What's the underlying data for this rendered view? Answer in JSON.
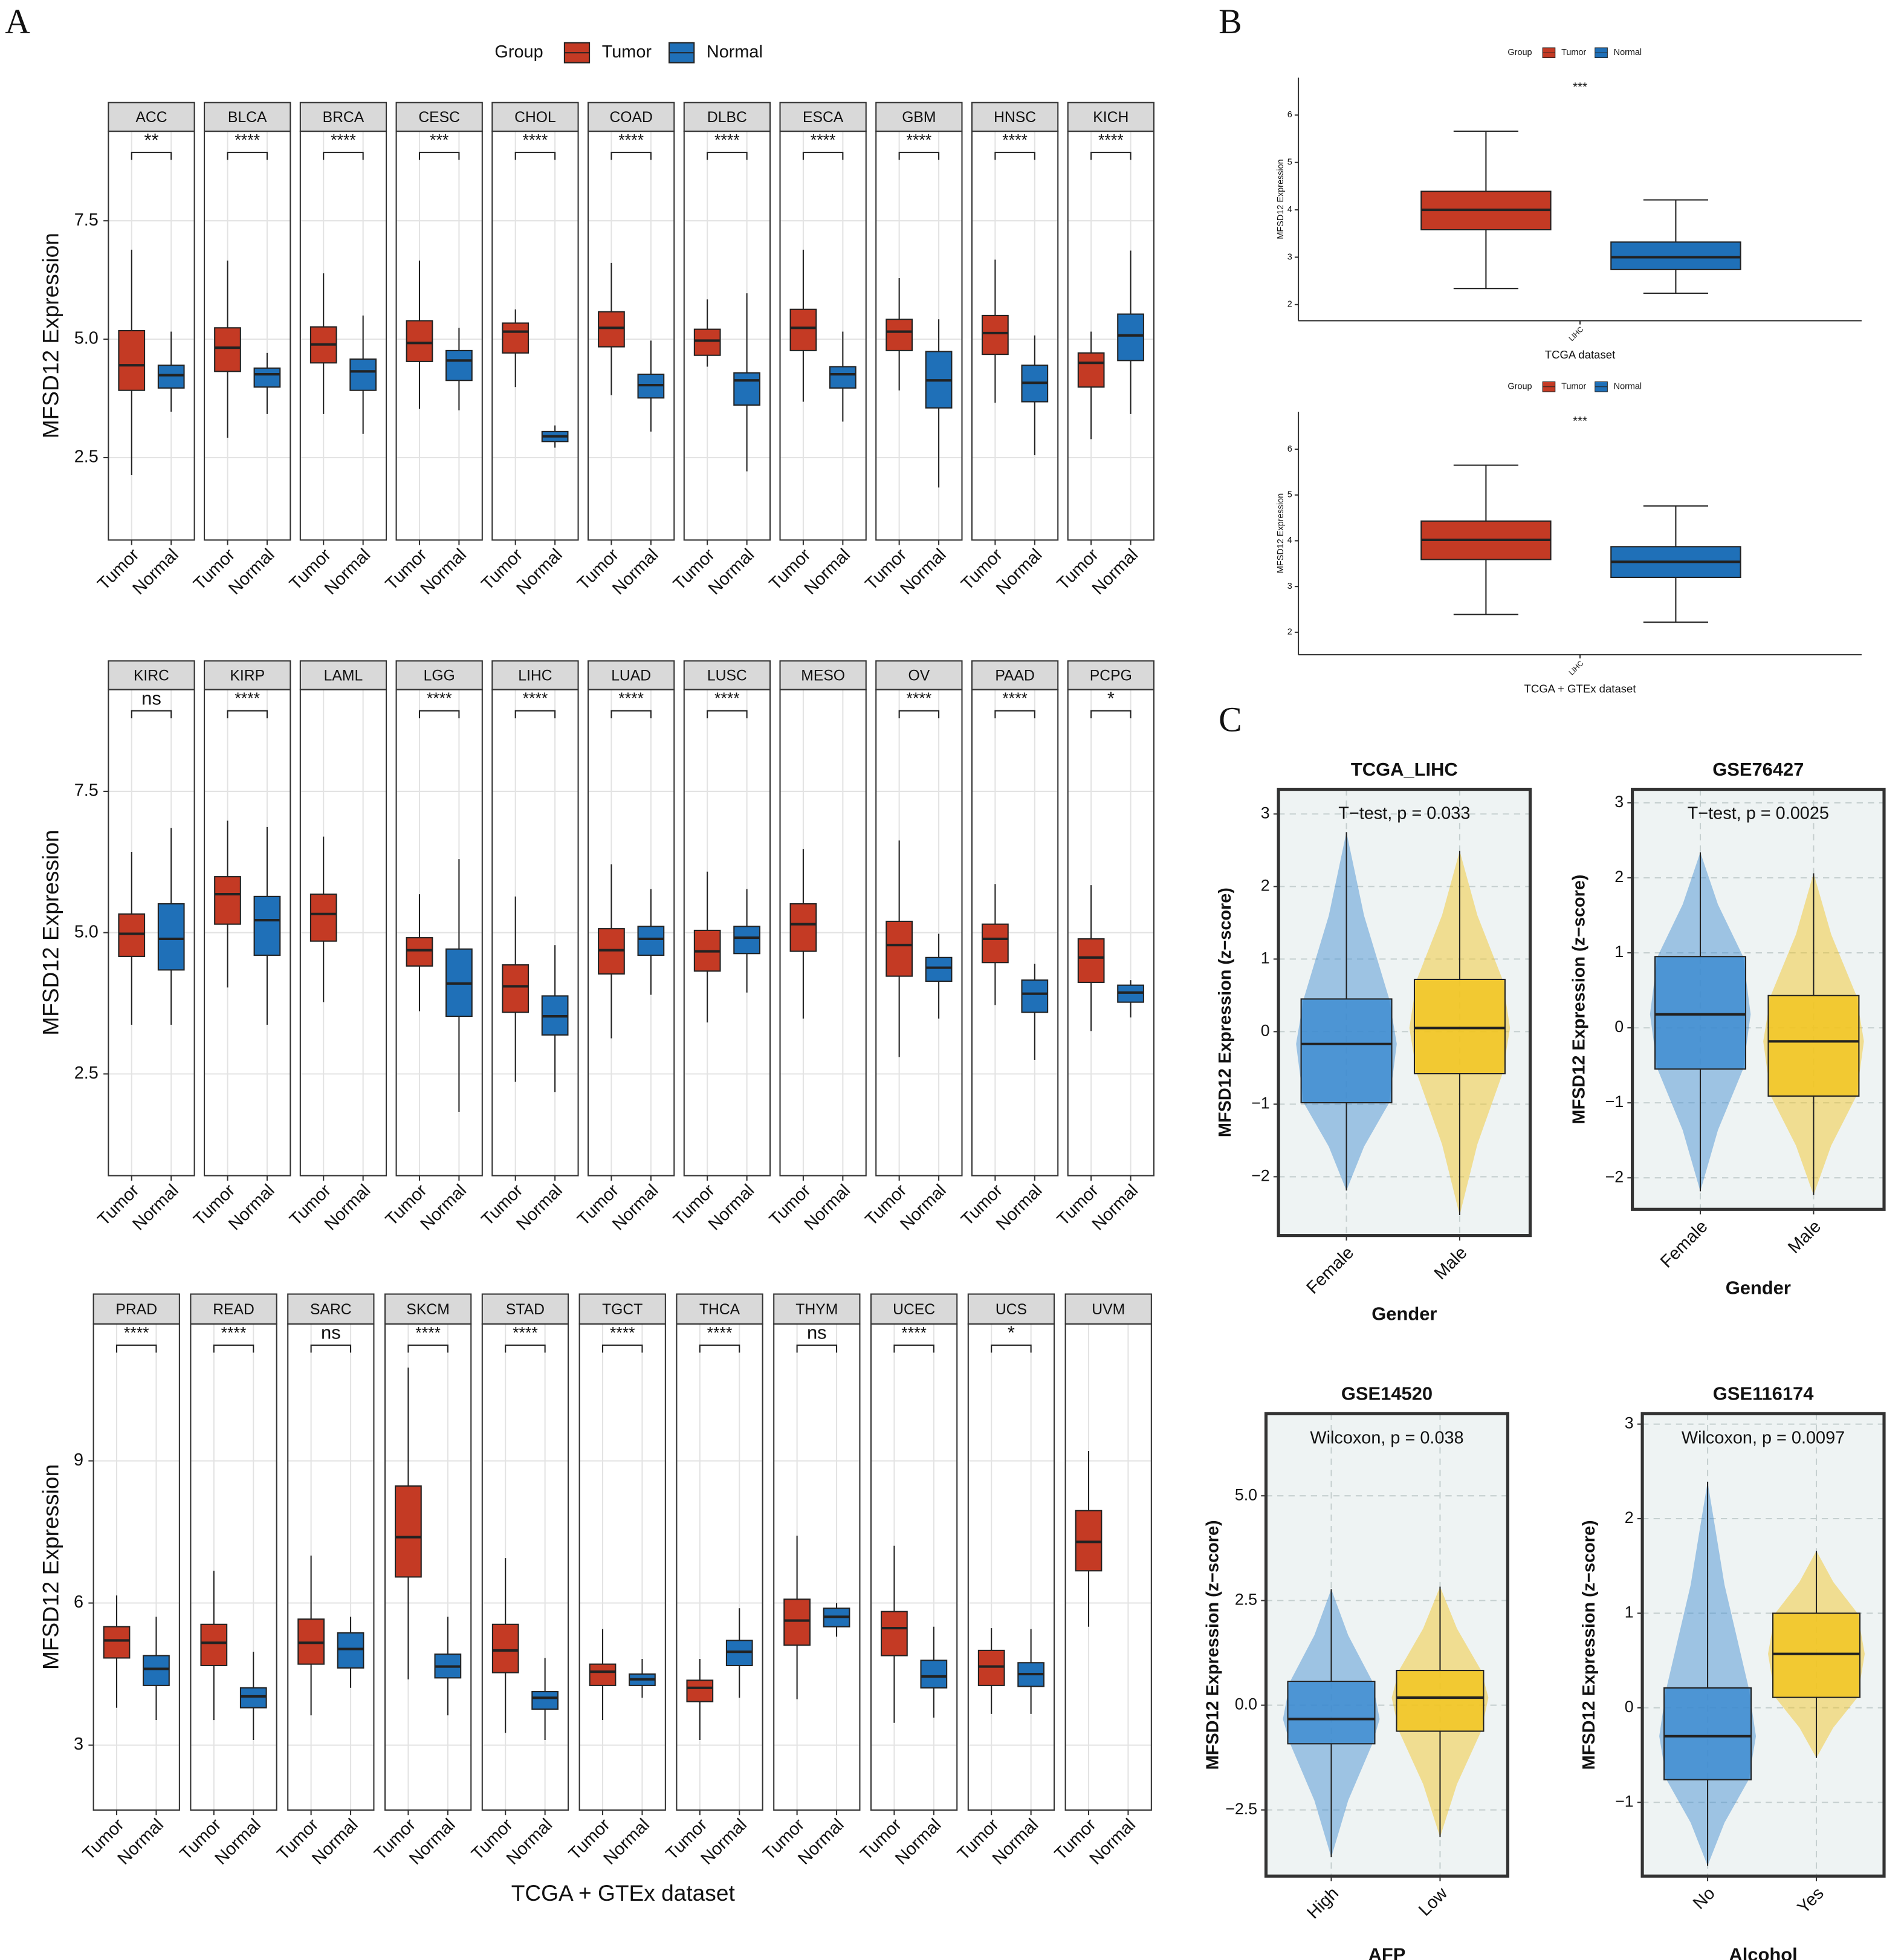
{
  "chart_data": [
    {
      "type": "facetbox",
      "panel_label": "A",
      "legend": {
        "title": "Group",
        "labels": [
          "Tumor",
          "Normal"
        ]
      },
      "categories": [
        "Tumor",
        "Normal"
      ],
      "colors": [
        "#c43a24",
        "#1f70b8"
      ],
      "ylabel": "MFSD12 Expression",
      "ylim": [
        0.76,
        9.39
      ],
      "yticks": [
        2.5,
        {
          "value": 5,
          "label": "5.0"
        },
        7.5
      ],
      "facets": [
        {
          "name": "ACC",
          "signif": "**",
          "boxes": [
            [
              2.13,
              3.92,
              4.45,
              5.18,
              6.89
            ],
            [
              3.47,
              3.97,
              4.24,
              4.45,
              5.16
            ]
          ]
        },
        {
          "name": "BLCA",
          "signif": "****",
          "boxes": [
            [
              2.92,
              4.32,
              4.82,
              5.24,
              6.66
            ],
            [
              3.42,
              3.99,
              4.26,
              4.39,
              4.71
            ]
          ]
        },
        {
          "name": "BRCA",
          "signif": "****",
          "boxes": [
            [
              3.42,
              4.5,
              4.89,
              5.26,
              6.39
            ],
            [
              3.0,
              3.92,
              4.32,
              4.58,
              5.5
            ]
          ]
        },
        {
          "name": "CESC",
          "signif": "***",
          "boxes": [
            [
              3.53,
              4.53,
              4.92,
              5.39,
              6.66
            ],
            [
              3.5,
              4.13,
              4.55,
              4.76,
              5.24
            ]
          ]
        },
        {
          "name": "CHOL",
          "signif": "****",
          "boxes": [
            [
              3.99,
              4.71,
              5.16,
              5.34,
              5.63
            ],
            [
              2.71,
              2.84,
              2.95,
              3.05,
              3.18
            ]
          ]
        },
        {
          "name": "COAD",
          "signif": "****",
          "boxes": [
            [
              3.82,
              4.84,
              5.24,
              5.58,
              6.61
            ],
            [
              3.05,
              3.76,
              4.03,
              4.26,
              4.97
            ]
          ]
        },
        {
          "name": "DLBC",
          "signif": "****",
          "boxes": [
            [
              4.42,
              4.66,
              4.97,
              5.21,
              5.84
            ],
            [
              2.21,
              3.61,
              4.13,
              4.29,
              5.97
            ]
          ]
        },
        {
          "name": "ESCA",
          "signif": "****",
          "boxes": [
            [
              3.68,
              4.76,
              5.24,
              5.63,
              6.89
            ],
            [
              3.26,
              3.97,
              4.26,
              4.42,
              5.16
            ]
          ]
        },
        {
          "name": "GBM",
          "signif": "****",
          "boxes": [
            [
              3.92,
              4.76,
              5.16,
              5.42,
              6.29
            ],
            [
              1.87,
              3.55,
              4.13,
              4.74,
              5.42
            ]
          ]
        },
        {
          "name": "HNSC",
          "signif": "****",
          "boxes": [
            [
              3.66,
              4.68,
              5.13,
              5.5,
              6.68
            ],
            [
              2.55,
              3.68,
              4.08,
              4.45,
              5.08
            ]
          ]
        },
        {
          "name": "KICH",
          "signif": "****",
          "boxes": [
            [
              2.89,
              3.99,
              4.5,
              4.71,
              5.16
            ],
            [
              3.42,
              4.55,
              5.08,
              5.53,
              6.87
            ]
          ]
        }
      ]
    },
    {
      "type": "facetbox",
      "categories": [
        "Tumor",
        "Normal"
      ],
      "colors": [
        "#c43a24",
        "#1f70b8"
      ],
      "ylabel": "MFSD12 Expression",
      "ylim": [
        0.7,
        9.3
      ],
      "yticks": [
        2.5,
        {
          "value": 5,
          "label": "5.0"
        },
        7.5
      ],
      "facets": [
        {
          "name": "KIRC",
          "signif": "ns",
          "boxes": [
            [
              3.37,
              4.58,
              4.98,
              5.33,
              6.43
            ],
            [
              3.37,
              4.34,
              4.89,
              5.51,
              6.85
            ]
          ]
        },
        {
          "name": "KIRP",
          "signif": "****",
          "boxes": [
            [
              4.03,
              5.15,
              5.68,
              5.99,
              6.98
            ],
            [
              3.37,
              4.6,
              5.22,
              5.64,
              6.87
            ]
          ]
        },
        {
          "name": "LAML",
          "signif": null,
          "boxes": [
            [
              3.77,
              4.85,
              5.33,
              5.68,
              6.7
            ],
            null
          ]
        },
        {
          "name": "LGG",
          "signif": "****",
          "boxes": [
            [
              3.61,
              4.41,
              4.69,
              4.91,
              5.68
            ],
            [
              1.83,
              3.52,
              4.1,
              4.71,
              6.3
            ]
          ]
        },
        {
          "name": "LIHC",
          "signif": "****",
          "boxes": [
            [
              2.36,
              3.59,
              4.05,
              4.43,
              5.64
            ],
            [
              2.18,
              3.19,
              3.52,
              3.88,
              4.78
            ]
          ]
        },
        {
          "name": "LUAD",
          "signif": "****",
          "boxes": [
            [
              3.13,
              4.27,
              4.69,
              5.07,
              6.21
            ],
            [
              3.9,
              4.6,
              4.89,
              5.11,
              5.77
            ]
          ]
        },
        {
          "name": "LUSC",
          "signif": "****",
          "boxes": [
            [
              3.41,
              4.32,
              4.67,
              5.04,
              6.08
            ],
            [
              3.94,
              4.63,
              4.91,
              5.11,
              5.77
            ]
          ]
        },
        {
          "name": "MESO",
          "signif": null,
          "boxes": [
            [
              3.48,
              4.67,
              5.15,
              5.51,
              6.48
            ],
            null
          ]
        },
        {
          "name": "OV",
          "signif": "****",
          "boxes": [
            [
              2.8,
              4.23,
              4.78,
              5.2,
              6.63
            ],
            [
              3.48,
              4.14,
              4.38,
              4.56,
              4.98
            ]
          ]
        },
        {
          "name": "PAAD",
          "signif": "****",
          "boxes": [
            [
              3.72,
              4.47,
              4.89,
              5.15,
              5.86
            ],
            [
              2.75,
              3.59,
              3.92,
              4.16,
              4.45
            ]
          ]
        },
        {
          "name": "PCPG",
          "signif": "*",
          "boxes": [
            [
              3.26,
              4.12,
              4.56,
              4.89,
              5.84
            ],
            [
              3.5,
              3.77,
              3.94,
              4.07,
              4.16
            ]
          ]
        }
      ]
    },
    {
      "type": "facetbox",
      "categories": [
        "Tumor",
        "Normal"
      ],
      "colors": [
        "#c43a24",
        "#1f70b8"
      ],
      "ylabel": "MFSD12 Expression",
      "xlabel": "TCGA + GTEx dataset",
      "ylim": [
        1.63,
        11.89
      ],
      "yticks": [
        3,
        6,
        9
      ],
      "facets": [
        {
          "name": "PRAD",
          "signif": "****",
          "boxes": [
            [
              3.79,
              4.84,
              5.21,
              5.5,
              6.16
            ],
            [
              3.53,
              4.26,
              4.61,
              4.89,
              5.71
            ]
          ]
        },
        {
          "name": "READ",
          "signif": "****",
          "boxes": [
            [
              3.53,
              4.68,
              5.16,
              5.55,
              6.68
            ],
            [
              3.11,
              3.79,
              4.03,
              4.21,
              4.97
            ]
          ]
        },
        {
          "name": "SARC",
          "signif": "ns",
          "boxes": [
            [
              3.63,
              4.71,
              5.16,
              5.66,
              7.0
            ],
            [
              4.21,
              4.63,
              5.03,
              5.37,
              5.71
            ]
          ]
        },
        {
          "name": "SKCM",
          "signif": "****",
          "boxes": [
            [
              4.39,
              6.55,
              7.39,
              8.47,
              10.97
            ],
            [
              3.63,
              4.42,
              4.66,
              4.92,
              5.71
            ]
          ]
        },
        {
          "name": "STAD",
          "signif": "****",
          "boxes": [
            [
              3.26,
              4.53,
              5.0,
              5.55,
              6.95
            ],
            [
              3.11,
              3.76,
              4.0,
              4.13,
              4.84
            ]
          ]
        },
        {
          "name": "TGCT",
          "signif": "****",
          "boxes": [
            [
              3.53,
              4.26,
              4.55,
              4.71,
              5.45
            ],
            [
              4.0,
              4.26,
              4.39,
              4.5,
              4.82
            ]
          ]
        },
        {
          "name": "THCA",
          "signif": "****",
          "boxes": [
            [
              3.11,
              3.92,
              4.21,
              4.37,
              4.82
            ],
            [
              4.0,
              4.68,
              4.97,
              5.21,
              5.89
            ]
          ]
        },
        {
          "name": "THYM",
          "signif": "ns",
          "boxes": [
            [
              3.97,
              5.11,
              5.63,
              6.08,
              7.42
            ],
            [
              5.29,
              5.5,
              5.71,
              5.89,
              6.0
            ]
          ]
        },
        {
          "name": "UCEC",
          "signif": "****",
          "boxes": [
            [
              3.47,
              4.89,
              5.47,
              5.82,
              7.21
            ],
            [
              3.58,
              4.21,
              4.45,
              4.79,
              5.5
            ]
          ]
        },
        {
          "name": "UCS",
          "signif": "*",
          "boxes": [
            [
              3.66,
              4.26,
              4.66,
              5.0,
              5.47
            ],
            [
              3.66,
              4.24,
              4.5,
              4.74,
              5.45
            ]
          ]
        },
        {
          "name": "UVM",
          "signif": null,
          "boxes": [
            [
              5.5,
              6.68,
              7.29,
              7.95,
              9.21
            ],
            null
          ]
        }
      ]
    },
    {
      "type": "boxplot",
      "panel_label": "B",
      "legend": {
        "title": "Group",
        "labels": [
          "Tumor",
          "Normal"
        ]
      },
      "categories": [
        "LIHC"
      ],
      "colors": [
        "#c43a24",
        "#1f70b8"
      ],
      "signif": "***",
      "ylabel": "MFSD12 Expression",
      "xlabel": "TCGA dataset",
      "ylim": [
        1.66,
        6.79
      ],
      "yticks": [
        2,
        3,
        4,
        5,
        6
      ],
      "boxes": [
        [
          2.34,
          3.58,
          4.0,
          4.39,
          5.66
        ],
        [
          2.24,
          2.74,
          3.0,
          3.32,
          4.21
        ]
      ]
    },
    {
      "type": "boxplot",
      "legend": {
        "title": "Group",
        "labels": [
          "Tumor",
          "Normal"
        ]
      },
      "categories": [
        "LIHC"
      ],
      "colors": [
        "#c43a24",
        "#1f70b8"
      ],
      "signif": "***",
      "ylabel": "MFSD12 Expression",
      "xlabel": "TCGA + GTEx dataset",
      "ylim": [
        1.51,
        6.82
      ],
      "yticks": [
        2,
        3,
        4,
        5,
        6
      ],
      "boxes": [
        [
          2.39,
          3.59,
          4.02,
          4.43,
          5.65
        ],
        [
          2.22,
          3.2,
          3.54,
          3.87,
          4.76
        ]
      ]
    },
    {
      "type": "violin",
      "panel_label": "C",
      "title": "TCGA_LIHC",
      "annotation": "T−test, p = 0.033",
      "categories": [
        "Female",
        "Male"
      ],
      "colors": [
        "#3a8ad0",
        "#f2c41a"
      ],
      "xlabel": "Gender",
      "ylabel": "MFSD12 Expression (z−score)",
      "ylim": [
        -2.81,
        3.34
      ],
      "yticks": [
        {
          "value": -2,
          "label": "−2"
        },
        {
          "value": -1,
          "label": "−1"
        },
        0,
        1,
        2,
        3
      ],
      "boxes": [
        [
          -2.19,
          -0.98,
          -0.17,
          0.45,
          2.75
        ],
        [
          -2.53,
          -0.58,
          0.05,
          0.72,
          2.49
        ]
      ]
    },
    {
      "type": "violin",
      "title": "GSE76427",
      "annotation": "T−test, p = 0.0025",
      "categories": [
        "Female",
        "Male"
      ],
      "colors": [
        "#3a8ad0",
        "#f2c41a"
      ],
      "xlabel": "Gender",
      "ylabel": "MFSD12 Expression (z−score)",
      "ylim": [
        -2.42,
        3.18
      ],
      "yticks": [
        {
          "value": -2,
          "label": "−2"
        },
        {
          "value": -1,
          "label": "−1"
        },
        0,
        1,
        2,
        3
      ],
      "boxes": [
        [
          -2.18,
          -0.55,
          0.18,
          0.95,
          2.34
        ],
        [
          -2.23,
          -0.91,
          -0.18,
          0.43,
          2.06
        ]
      ]
    },
    {
      "type": "violin",
      "title": "GSE14520",
      "annotation": "Wilcoxon, p = 0.038",
      "categories": [
        "High",
        "Low"
      ],
      "colors": [
        "#3a8ad0",
        "#f2c41a"
      ],
      "xlabel": "AFP",
      "ylabel": "MFSD12 Expression (z−score)",
      "ylim": [
        -4.08,
        6.96
      ],
      "yticks": [
        {
          "value": -2.5,
          "label": "−2.5"
        },
        {
          "value": 0,
          "label": "0.0"
        },
        2.5,
        {
          "value": 5,
          "label": "5.0"
        }
      ],
      "boxes": [
        [
          -3.63,
          -0.92,
          -0.33,
          0.57,
          2.77
        ],
        [
          -3.15,
          -0.62,
          0.18,
          0.83,
          2.83
        ]
      ]
    },
    {
      "type": "violin",
      "title": "GSE116174",
      "annotation": "Wilcoxon, p = 0.0097",
      "categories": [
        "No",
        "Yes"
      ],
      "colors": [
        "#3a8ad0",
        "#f2c41a"
      ],
      "xlabel": "Alcohol",
      "ylabel": "MFSD12 Expression (z−score)",
      "ylim": [
        -1.78,
        3.11
      ],
      "yticks": [
        {
          "value": -1,
          "label": "−1"
        },
        0,
        1,
        2,
        3
      ],
      "boxes": [
        [
          -1.67,
          -0.76,
          -0.3,
          0.21,
          2.39
        ],
        [
          -0.53,
          0.11,
          0.57,
          1.0,
          1.66
        ]
      ]
    }
  ]
}
